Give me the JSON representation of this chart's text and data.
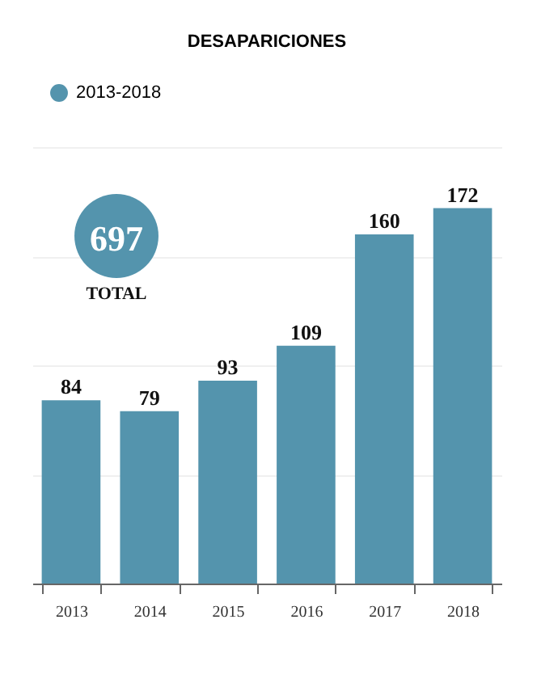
{
  "chart_data": {
    "type": "bar",
    "title": "DESAPARICIONES",
    "categories": [
      "2013",
      "2014",
      "2015",
      "2016",
      "2017",
      "2018"
    ],
    "series": [
      {
        "name": "2013-2018",
        "color": "#5494ad",
        "values": [
          84,
          79,
          93,
          109,
          160,
          172
        ]
      }
    ],
    "ylim": [
      0,
      200
    ],
    "yticks": [
      0,
      50,
      100,
      150,
      200
    ],
    "grid": "y",
    "tick_labels": "x",
    "data_labels": true,
    "legend": "top",
    "annotations": [
      "697",
      "TOTAL"
    ]
  }
}
